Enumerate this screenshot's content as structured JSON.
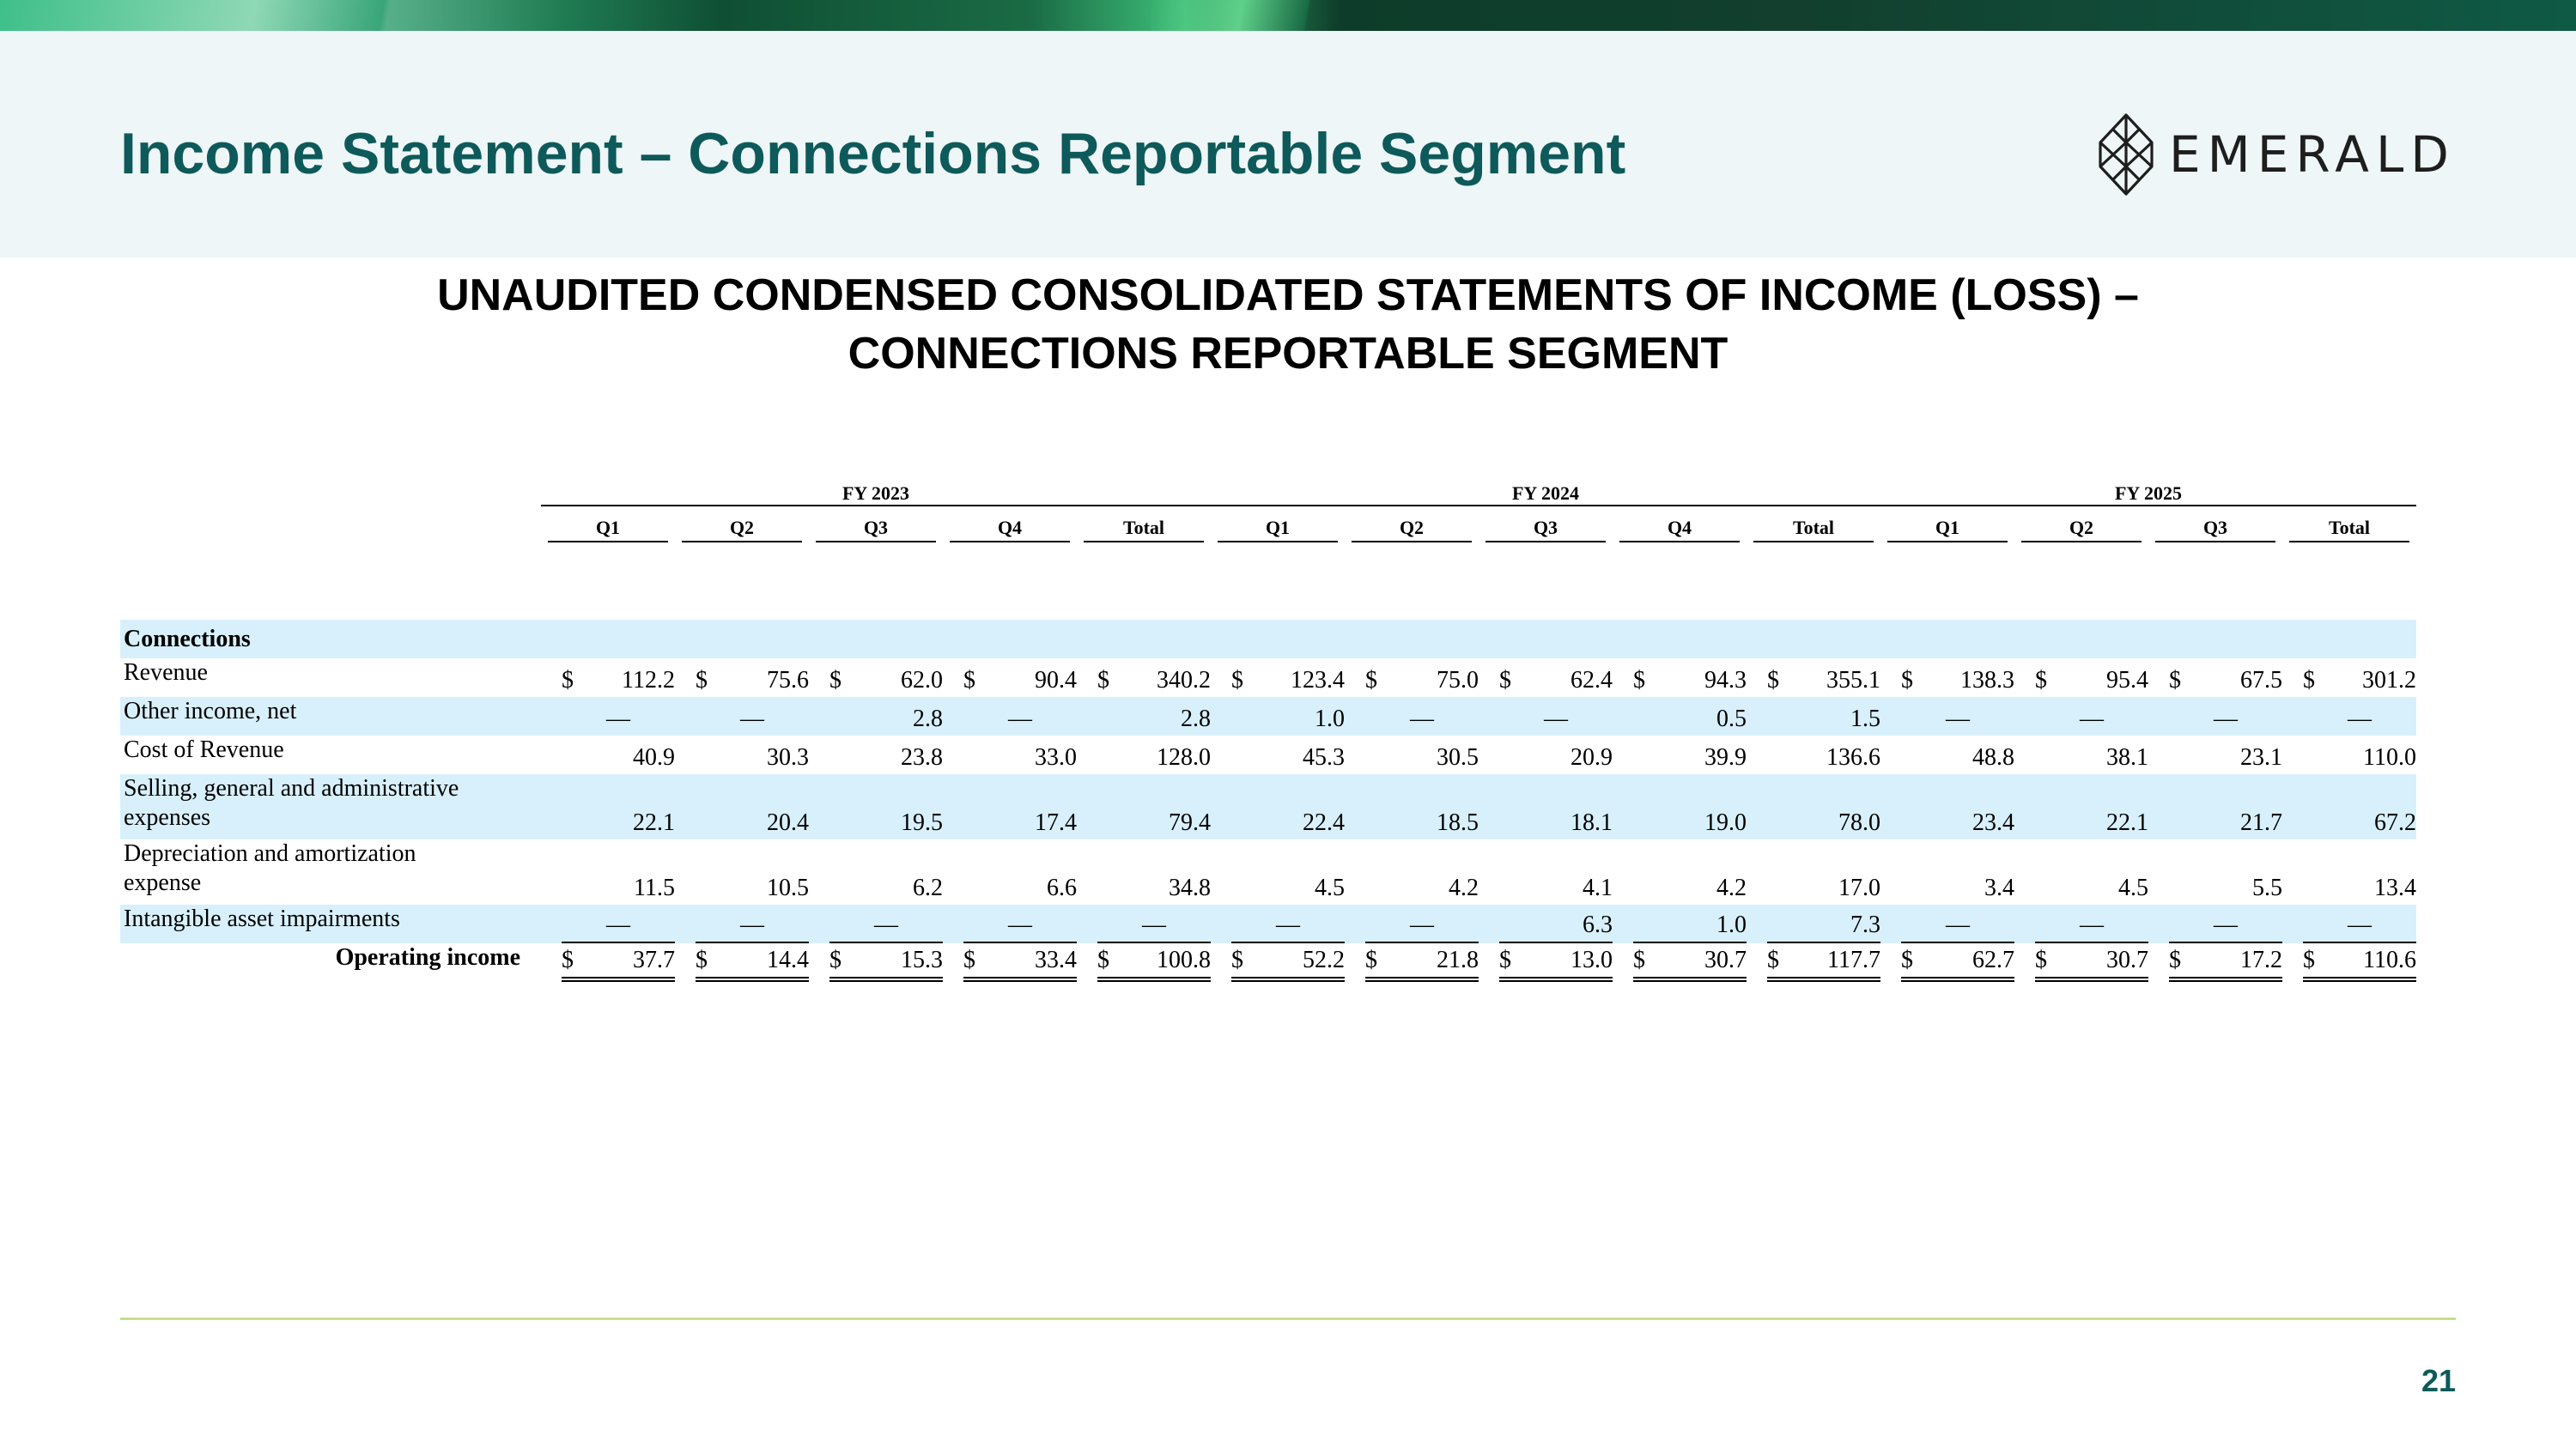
{
  "slide": {
    "title": "Income Statement – Connections Reportable Segment",
    "page_number": "21",
    "logo_text": "EMERALD",
    "heading_line1": "UNAUDITED CONDENSED CONSOLIDATED STATEMENTS OF INCOME (LOSS) –",
    "heading_line2": "CONNECTIONS REPORTABLE SEGMENT"
  },
  "table": {
    "fiscal_years": [
      "FY 2023",
      "FY 2024",
      "FY 2025"
    ],
    "periods": [
      "Q1",
      "Q2",
      "Q3",
      "Q4",
      "Total",
      "Q1",
      "Q2",
      "Q3",
      "Q4",
      "Total",
      "Q1",
      "Q2",
      "Q3",
      "Total"
    ],
    "currency_symbol": "$",
    "section_label": "Connections",
    "rows": [
      {
        "label_lines": [
          "Revenue"
        ],
        "values": [
          "112.2",
          "75.6",
          "62.0",
          "90.4",
          "340.2",
          "123.4",
          "75.0",
          "62.4",
          "94.3",
          "355.1",
          "138.3",
          "95.4",
          "67.5",
          "301.2"
        ]
      },
      {
        "label_lines": [
          "Other income, net"
        ],
        "values": [
          "—",
          "—",
          "2.8",
          "—",
          "2.8",
          "1.0",
          "—",
          "—",
          "0.5",
          "1.5",
          "—",
          "—",
          "—",
          "—"
        ]
      },
      {
        "label_lines": [
          "Cost of Revenue"
        ],
        "values": [
          "40.9",
          "30.3",
          "23.8",
          "33.0",
          "128.0",
          "45.3",
          "30.5",
          "20.9",
          "39.9",
          "136.6",
          "48.8",
          "38.1",
          "23.1",
          "110.0"
        ]
      },
      {
        "label_lines": [
          "Selling, general and administrative",
          "expenses"
        ],
        "values": [
          "22.1",
          "20.4",
          "19.5",
          "17.4",
          "79.4",
          "22.4",
          "18.5",
          "18.1",
          "19.0",
          "78.0",
          "23.4",
          "22.1",
          "21.7",
          "67.2"
        ]
      },
      {
        "label_lines": [
          "Depreciation and amortization",
          "expense"
        ],
        "values": [
          "11.5",
          "10.5",
          "6.2",
          "6.6",
          "34.8",
          "4.5",
          "4.2",
          "4.1",
          "4.2",
          "17.0",
          "3.4",
          "4.5",
          "5.5",
          "13.4"
        ]
      },
      {
        "label_lines": [
          "Intangible asset impairments"
        ],
        "values": [
          "—",
          "—",
          "—",
          "—",
          "—",
          "—",
          "—",
          "6.3",
          "1.0",
          "7.3",
          "—",
          "—",
          "—",
          "—"
        ]
      },
      {
        "label_lines": [
          "Operating income"
        ],
        "values": [
          "37.7",
          "14.4",
          "15.3",
          "33.4",
          "100.8",
          "52.2",
          "21.8",
          "13.0",
          "30.7",
          "117.7",
          "62.7",
          "30.7",
          "17.2",
          "110.6"
        ]
      }
    ]
  },
  "colors": {
    "title": "#0e5a5a",
    "row_highlight": "#d8f0fb",
    "header_band": "#eef6f8",
    "footer_rule": "#c7e08f"
  }
}
